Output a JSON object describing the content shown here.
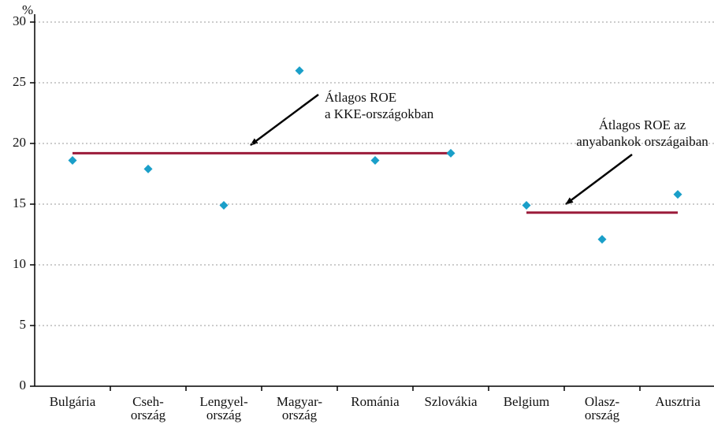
{
  "chart_data": {
    "type": "scatter",
    "y_unit_label": "%",
    "categories": [
      [
        "Bulgária"
      ],
      [
        "Cseh-",
        "ország"
      ],
      [
        "Lengyel-",
        "ország"
      ],
      [
        "Magyar-",
        "ország"
      ],
      [
        "Románia"
      ],
      [
        "Szlovákia"
      ],
      [
        "Belgium"
      ],
      [
        "Olasz-",
        "ország"
      ],
      [
        "Ausztria"
      ]
    ],
    "values": [
      18.6,
      17.9,
      14.9,
      26.0,
      18.6,
      19.2,
      14.9,
      12.1,
      15.8
    ],
    "color": "#1a9fc9",
    "averages": [
      {
        "value": 19.2,
        "label": [
          "Átlagos ROE",
          "a KKE-országokban"
        ]
      },
      {
        "value": 14.3,
        "label": [
          "Átlagos ROE az",
          "anyabankok országaiban"
        ]
      }
    ],
    "average_color": "#9b1b3a",
    "ylim": [
      0,
      30
    ],
    "yticks": [
      0,
      5,
      10,
      15,
      20,
      25,
      30
    ],
    "grid": true
  }
}
